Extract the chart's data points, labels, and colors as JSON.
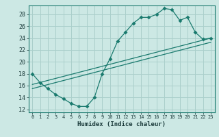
{
  "title": "",
  "xlabel": "Humidex (Indice chaleur)",
  "ylabel": "",
  "bg_color": "#cce8e4",
  "line_color": "#1a7a6e",
  "grid_color": "#aacfcb",
  "xlim": [
    -0.5,
    23.5
  ],
  "ylim": [
    11.5,
    29.5
  ],
  "xticks": [
    0,
    1,
    2,
    3,
    4,
    5,
    6,
    7,
    8,
    9,
    10,
    11,
    12,
    13,
    14,
    15,
    16,
    17,
    18,
    19,
    20,
    21,
    22,
    23
  ],
  "yticks": [
    12,
    14,
    16,
    18,
    20,
    22,
    24,
    26,
    28
  ],
  "curve1_x": [
    0,
    1,
    2,
    3,
    4,
    5,
    6,
    7,
    8,
    9,
    10,
    11,
    12,
    13,
    14,
    15,
    16,
    17,
    18,
    19,
    20,
    21,
    22,
    23
  ],
  "curve1_y": [
    18,
    16.5,
    15.5,
    14.5,
    13.8,
    13.0,
    12.5,
    12.5,
    14.0,
    18.0,
    20.5,
    23.5,
    25.0,
    26.5,
    27.5,
    27.5,
    28.0,
    29.0,
    28.8,
    27.0,
    27.5,
    25.0,
    23.8,
    24.0
  ],
  "line2_x": [
    0,
    23
  ],
  "line2_y": [
    16.2,
    24.0
  ],
  "line3_x": [
    0,
    23
  ],
  "line3_y": [
    15.5,
    23.3
  ],
  "marker_size": 3
}
